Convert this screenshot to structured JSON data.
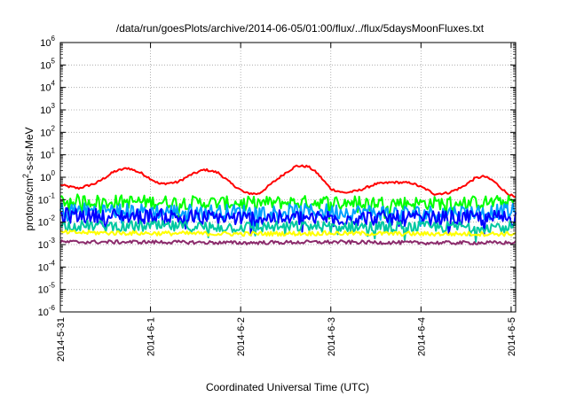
{
  "chart_data": {
    "type": "line",
    "title": "/data/run/goesPlots/archive/2014-06-05/01:00/flux/../flux/5daysMoonFluxes.txt",
    "xlabel": "Coordinated Universal Time (UTC)",
    "ylabel": "protons/cm²-s-sr-MeV",
    "yscale": "log",
    "ylim_exponents": [
      -6,
      6
    ],
    "y_tick_exponents": [
      -6,
      -5,
      -4,
      -3,
      -2,
      -1,
      0,
      1,
      2,
      3,
      4,
      5,
      6
    ],
    "xlim_days": [
      0,
      5.05
    ],
    "x_ticks": [
      {
        "label": "2014-5-31",
        "day": 0
      },
      {
        "label": "2014-6-1",
        "day": 1
      },
      {
        "label": "2014-6-2",
        "day": 2
      },
      {
        "label": "2014-6-3",
        "day": 3
      },
      {
        "label": "2014-6-4",
        "day": 4
      },
      {
        "label": "2014-6-5",
        "day": 5
      }
    ],
    "grid": true,
    "series": [
      {
        "color": "#ff0000",
        "noise": 0.05,
        "points": [
          [
            0,
            0.45
          ],
          [
            0.2,
            0.32
          ],
          [
            0.4,
            0.55
          ],
          [
            0.6,
            1.8
          ],
          [
            0.75,
            2.6
          ],
          [
            0.9,
            1.5
          ],
          [
            1.1,
            0.5
          ],
          [
            1.3,
            0.6
          ],
          [
            1.45,
            1.3
          ],
          [
            1.6,
            2.2
          ],
          [
            1.75,
            1.6
          ],
          [
            1.9,
            0.5
          ],
          [
            2.05,
            0.2
          ],
          [
            2.2,
            0.18
          ],
          [
            2.35,
            0.55
          ],
          [
            2.5,
            1.6
          ],
          [
            2.62,
            3.2
          ],
          [
            2.75,
            3.0
          ],
          [
            2.85,
            1.5
          ],
          [
            3.0,
            0.3
          ],
          [
            3.15,
            0.2
          ],
          [
            3.3,
            0.25
          ],
          [
            3.5,
            0.5
          ],
          [
            3.7,
            0.6
          ],
          [
            3.9,
            0.55
          ],
          [
            4.05,
            0.3
          ],
          [
            4.15,
            0.18
          ],
          [
            4.3,
            0.2
          ],
          [
            4.45,
            0.35
          ],
          [
            4.6,
            0.9
          ],
          [
            4.7,
            1.1
          ],
          [
            4.8,
            0.7
          ],
          [
            4.95,
            0.2
          ],
          [
            5.05,
            0.12
          ]
        ]
      },
      {
        "color": "#00ff00",
        "noise": 0.3,
        "points": [
          [
            0,
            0.09
          ],
          [
            1.0,
            0.08
          ],
          [
            2.0,
            0.07
          ],
          [
            3.0,
            0.08
          ],
          [
            4.0,
            0.07
          ],
          [
            5.05,
            0.08
          ]
        ]
      },
      {
        "color": "#00a0ff",
        "noise": 0.35,
        "points": [
          [
            0,
            0.035
          ],
          [
            1.0,
            0.03
          ],
          [
            2.0,
            0.028
          ],
          [
            3.0,
            0.03
          ],
          [
            4.0,
            0.025
          ],
          [
            5.05,
            0.03
          ]
        ]
      },
      {
        "color": "#0000ff",
        "noise": 0.35,
        "points": [
          [
            0,
            0.02
          ],
          [
            1.0,
            0.018
          ],
          [
            2.0,
            0.015
          ],
          [
            3.0,
            0.016
          ],
          [
            4.0,
            0.014
          ],
          [
            5.05,
            0.016
          ]
        ]
      },
      {
        "color": "#00c8a0",
        "noise": 0.25,
        "points": [
          [
            0,
            0.007
          ],
          [
            1.0,
            0.0065
          ],
          [
            2.0,
            0.006
          ],
          [
            3.0,
            0.0065
          ],
          [
            4.0,
            0.006
          ],
          [
            5.05,
            0.0065
          ]
        ]
      },
      {
        "color": "#ffff00",
        "noise": 0.1,
        "points": [
          [
            0,
            0.0035
          ],
          [
            1.0,
            0.0032
          ],
          [
            2.0,
            0.003
          ],
          [
            3.0,
            0.0032
          ],
          [
            4.0,
            0.003
          ],
          [
            5.05,
            0.003
          ]
        ]
      },
      {
        "color": "#8b2a6b",
        "noise": 0.08,
        "points": [
          [
            0,
            0.0013
          ],
          [
            1.0,
            0.0013
          ],
          [
            2.0,
            0.0012
          ],
          [
            3.0,
            0.0013
          ],
          [
            4.0,
            0.0012
          ],
          [
            5.05,
            0.0012
          ]
        ]
      }
    ]
  }
}
